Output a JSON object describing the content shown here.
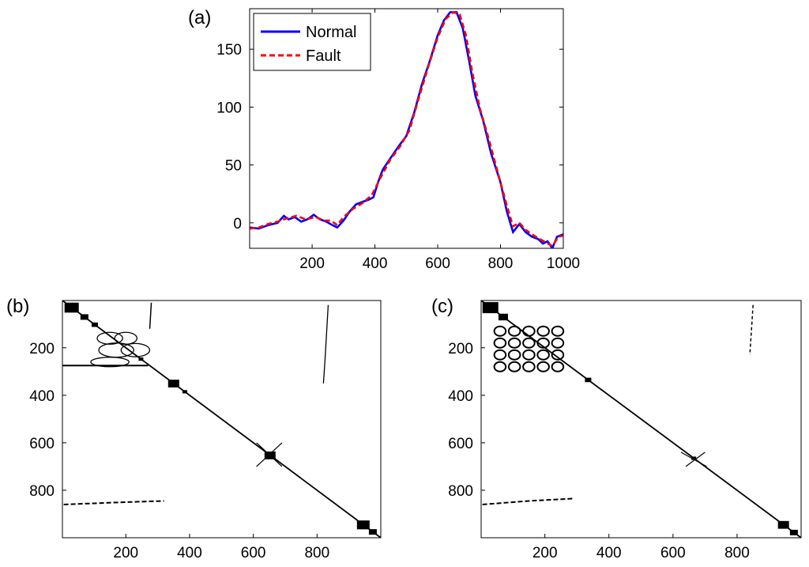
{
  "chart_data": [
    {
      "id": "a",
      "panel_label": "(a)",
      "type": "line",
      "xlim": [
        1,
        1000
      ],
      "ylim": [
        -22,
        185
      ],
      "xticks": [
        200,
        400,
        600,
        800,
        1000
      ],
      "yticks": [
        0,
        50,
        100,
        150
      ],
      "legend_position": "top-left",
      "series": [
        {
          "name": "Normal",
          "color": "#0000ff",
          "style": "solid",
          "points": [
            [
              1,
              -4
            ],
            [
              30,
              -5
            ],
            [
              60,
              -2
            ],
            [
              90,
              0
            ],
            [
              110,
              6
            ],
            [
              125,
              3
            ],
            [
              145,
              5
            ],
            [
              165,
              1
            ],
            [
              185,
              3
            ],
            [
              205,
              7
            ],
            [
              225,
              3
            ],
            [
              245,
              1
            ],
            [
              265,
              -2
            ],
            [
              280,
              -4
            ],
            [
              300,
              2
            ],
            [
              320,
              10
            ],
            [
              340,
              16
            ],
            [
              360,
              18
            ],
            [
              380,
              20
            ],
            [
              395,
              22
            ],
            [
              410,
              35
            ],
            [
              425,
              46
            ],
            [
              450,
              56
            ],
            [
              475,
              66
            ],
            [
              500,
              75
            ],
            [
              525,
              95
            ],
            [
              550,
              120
            ],
            [
              575,
              140
            ],
            [
              600,
              162
            ],
            [
              620,
              175
            ],
            [
              640,
              182
            ],
            [
              660,
              182
            ],
            [
              680,
              168
            ],
            [
              700,
              140
            ],
            [
              720,
              110
            ],
            [
              745,
              88
            ],
            [
              770,
              60
            ],
            [
              800,
              35
            ],
            [
              820,
              10
            ],
            [
              840,
              -8
            ],
            [
              860,
              -1
            ],
            [
              880,
              -8
            ],
            [
              900,
              -12
            ],
            [
              920,
              -14
            ],
            [
              935,
              -18
            ],
            [
              950,
              -16
            ],
            [
              965,
              -22
            ],
            [
              980,
              -12
            ],
            [
              1000,
              -10
            ]
          ]
        },
        {
          "name": "Fault",
          "color": "#ff0000",
          "style": "dashed",
          "points": [
            [
              1,
              -5
            ],
            [
              30,
              -4
            ],
            [
              60,
              -1
            ],
            [
              90,
              1
            ],
            [
              120,
              4
            ],
            [
              150,
              6
            ],
            [
              180,
              3
            ],
            [
              210,
              5
            ],
            [
              240,
              2
            ],
            [
              260,
              2
            ],
            [
              280,
              -2
            ],
            [
              300,
              5
            ],
            [
              330,
              12
            ],
            [
              360,
              17
            ],
            [
              390,
              24
            ],
            [
              420,
              40
            ],
            [
              450,
              55
            ],
            [
              480,
              66
            ],
            [
              510,
              80
            ],
            [
              540,
              108
            ],
            [
              570,
              135
            ],
            [
              600,
              160
            ],
            [
              625,
              176
            ],
            [
              650,
              182
            ],
            [
              670,
              180
            ],
            [
              690,
              162
            ],
            [
              710,
              130
            ],
            [
              735,
              98
            ],
            [
              760,
              75
            ],
            [
              790,
              45
            ],
            [
              820,
              15
            ],
            [
              840,
              -3
            ],
            [
              860,
              0
            ],
            [
              880,
              -6
            ],
            [
              900,
              -10
            ],
            [
              925,
              -14
            ],
            [
              945,
              -17
            ],
            [
              965,
              -20
            ],
            [
              985,
              -12
            ],
            [
              1000,
              -11
            ]
          ]
        }
      ]
    },
    {
      "id": "b",
      "panel_label": "(b)",
      "type": "heatmap",
      "xlim": [
        1,
        1000
      ],
      "ylim": [
        1000,
        1
      ],
      "xticks": [
        200,
        400,
        600,
        800
      ],
      "yticks": [
        200,
        400,
        600,
        800
      ]
    },
    {
      "id": "c",
      "panel_label": "(c)",
      "type": "heatmap",
      "xlim": [
        1,
        1000
      ],
      "ylim": [
        1000,
        1
      ],
      "xticks": [
        200,
        400,
        600,
        800
      ],
      "yticks": [
        200,
        400,
        600,
        800
      ]
    }
  ]
}
